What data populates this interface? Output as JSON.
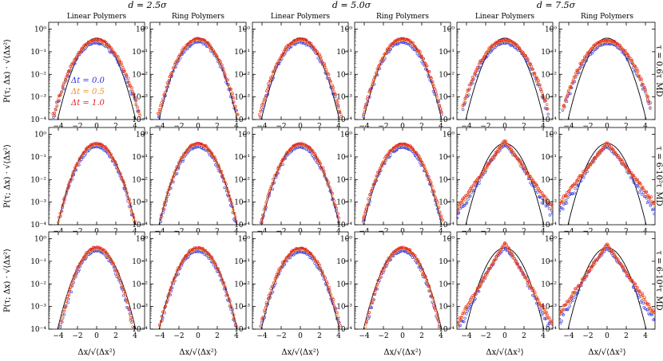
{
  "figure": {
    "column_groups": [
      "d = 2.5σ",
      "d = 5.0σ",
      "d = 7.5σ"
    ],
    "column_titles": [
      "Linear Polymers",
      "Ring Polymers",
      "Linear Polymers",
      "Ring Polymers",
      "Linear Polymers",
      "Ring Polymers"
    ],
    "row_labels": [
      "τ = 0.6τ_MD",
      "τ = 6·10²τ_MD",
      "τ = 6·10⁴τ_MD"
    ],
    "ylabel": "P(τ; Δx) · √⟨Δx²⟩",
    "xlabel": "Δx/√⟨Δx²⟩",
    "y_tick_labels": [
      "10⁰",
      "10⁻¹",
      "10⁻²",
      "10⁻³",
      "10⁻⁴"
    ],
    "x_tick_labels": [
      "−4",
      "−2",
      "0",
      "2",
      "4"
    ],
    "legend": [
      {
        "label": "Δt = 0.0",
        "color": "#3030e0"
      },
      {
        "label": "Δt = 0.5",
        "color": "#f09020"
      },
      {
        "label": "Δt = 1.0",
        "color": "#e82020"
      }
    ],
    "gaussian_color": "#000000"
  },
  "chart_data": {
    "type": "scatter",
    "layout": "3 rows × 6 panels",
    "x_range": [
      -5,
      5
    ],
    "y_range": [
      0.0001,
      2
    ],
    "y_scale": "log",
    "reference_curve": "Gaussian N(0,1) (black line)",
    "series_names": [
      "Δt = 0.0",
      "Δt = 0.5",
      "Δt = 1.0"
    ],
    "panels": [
      {
        "row": 0,
        "col": 0,
        "shape": "gauss",
        "wide": 1.15,
        "range": [
          -5,
          4.5
        ]
      },
      {
        "row": 0,
        "col": 1,
        "shape": "gauss",
        "wide": 1.05,
        "range": [
          -4.5,
          4.4
        ]
      },
      {
        "row": 0,
        "col": 2,
        "shape": "gauss",
        "wide": 1.08,
        "range": [
          -4.5,
          4.6
        ]
      },
      {
        "row": 0,
        "col": 3,
        "shape": "gauss",
        "wide": 1.05,
        "range": [
          -4.2,
          4.4
        ]
      },
      {
        "row": 0,
        "col": 4,
        "shape": "gauss",
        "wide": 1.2,
        "range": [
          -4.4,
          4.6
        ]
      },
      {
        "row": 0,
        "col": 5,
        "shape": "gauss",
        "wide": 1.25,
        "range": [
          -4.6,
          4.6
        ]
      },
      {
        "row": 1,
        "col": 0,
        "shape": "gauss",
        "wide": 1.0,
        "range": [
          -4.5,
          4.5
        ]
      },
      {
        "row": 1,
        "col": 1,
        "shape": "gauss",
        "wide": 1.0,
        "range": [
          -4.4,
          4.4
        ]
      },
      {
        "row": 1,
        "col": 2,
        "shape": "gauss",
        "wide": 1.03,
        "range": [
          -4.5,
          4.5
        ]
      },
      {
        "row": 1,
        "col": 3,
        "shape": "gauss",
        "wide": 1.05,
        "range": [
          -4.5,
          4.5
        ]
      },
      {
        "row": 1,
        "col": 4,
        "shape": "laplace",
        "peak": 0.55,
        "b": 0.72,
        "range": [
          -5,
          5
        ]
      },
      {
        "row": 1,
        "col": 5,
        "shape": "laplace",
        "peak": 0.45,
        "b": 0.8,
        "range": [
          -5,
          5
        ]
      },
      {
        "row": 2,
        "col": 0,
        "shape": "gauss",
        "wide": 0.95,
        "range": [
          -4,
          4.5
        ]
      },
      {
        "row": 2,
        "col": 1,
        "shape": "gauss",
        "wide": 1.0,
        "range": [
          -4.6,
          4.5
        ]
      },
      {
        "row": 2,
        "col": 2,
        "shape": "gauss",
        "wide": 1.05,
        "range": [
          -4.6,
          4.7
        ]
      },
      {
        "row": 2,
        "col": 3,
        "shape": "gauss",
        "wide": 0.97,
        "range": [
          -4.2,
          4.2
        ]
      },
      {
        "row": 2,
        "col": 4,
        "shape": "laplace",
        "peak": 0.7,
        "b": 0.6,
        "range": [
          -5,
          5
        ]
      },
      {
        "row": 2,
        "col": 5,
        "shape": "laplace",
        "peak": 0.6,
        "b": 0.7,
        "range": [
          -5,
          5
        ]
      }
    ]
  }
}
